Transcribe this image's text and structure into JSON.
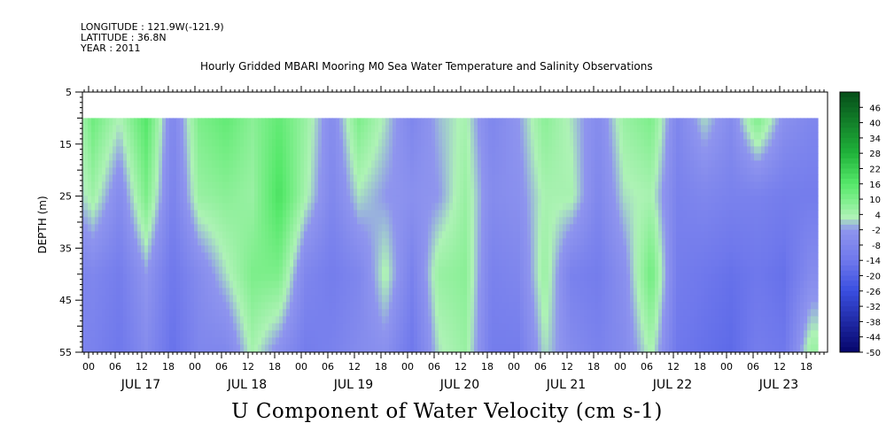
{
  "header": {
    "longitude": "LONGITUDE : 121.9W(-121.9)",
    "latitude": "LATITUDE : 36.8N",
    "year": "YEAR : 2011"
  },
  "chart_data": {
    "type": "heatmap",
    "title": "Hourly Gridded MBARI Mooring M0 Sea Water Temperature and Salinity Observations",
    "xlabel": "U Component of Water Velocity (cm s-1)",
    "ylabel": "DEPTH (m)",
    "ylim": [
      55,
      5
    ],
    "y_ticks": [
      5,
      15,
      25,
      35,
      45,
      55
    ],
    "data_depth_range": [
      10,
      55
    ],
    "x_hour_ticks": [
      "00",
      "06",
      "12",
      "18",
      "00",
      "06",
      "12",
      "18",
      "00",
      "06",
      "12",
      "18",
      "00",
      "06",
      "12",
      "18",
      "00",
      "06",
      "12",
      "18",
      "00",
      "06",
      "12",
      "18",
      "00",
      "06",
      "12",
      "18"
    ],
    "x_day_labels": [
      "JUL 17",
      "JUL 18",
      "JUL 19",
      "JUL 20",
      "JUL 21",
      "JUL 22",
      "JUL 23"
    ],
    "colorbar_labels": [
      "46",
      "40",
      "34",
      "28",
      "22",
      "16",
      "10",
      "4",
      "-2",
      "-8",
      "-14",
      "-20",
      "-26",
      "-32",
      "-38",
      "-44",
      "-50"
    ],
    "colorbar_range": [
      -50,
      52
    ],
    "colors": {
      "strong_negative": "#05056a",
      "negative": "#8f95ee",
      "near_zero": "#aef2b6",
      "positive": "#55e86a",
      "strong_positive": "#064e19"
    },
    "u_samples": {
      "x_days_since_jul17": [
        -0.208,
        0.042,
        0.292,
        0.542,
        0.792,
        1.042,
        1.292,
        1.542,
        1.792,
        2.042,
        2.292,
        2.542,
        2.792,
        3.042,
        3.292,
        3.542,
        3.792,
        4.042,
        4.292,
        4.542,
        4.792,
        5.042,
        5.292,
        5.542,
        5.792,
        6.042,
        6.292,
        6.542,
        6.792
      ],
      "depths": [
        10,
        25,
        40,
        55
      ],
      "values": [
        [
          -6,
          -4,
          -10,
          -8
        ],
        [
          12,
          5,
          -8,
          -10
        ],
        [
          3,
          -6,
          -12,
          -14
        ],
        [
          16,
          10,
          -2,
          -6
        ],
        [
          -8,
          -10,
          -14,
          -16
        ],
        [
          10,
          6,
          -6,
          -8
        ],
        [
          14,
          8,
          2,
          -8
        ],
        [
          8,
          6,
          10,
          4
        ],
        [
          14,
          18,
          10,
          -4
        ],
        [
          6,
          4,
          -8,
          -12
        ],
        [
          -6,
          -8,
          -12,
          -10
        ],
        [
          10,
          2,
          -8,
          -6
        ],
        [
          2,
          -2,
          4,
          -4
        ],
        [
          -8,
          -4,
          -10,
          -14
        ],
        [
          0,
          -2,
          6,
          2
        ],
        [
          4,
          6,
          8,
          6
        ],
        [
          -8,
          -6,
          -10,
          -12
        ],
        [
          -2,
          -4,
          -8,
          -12
        ],
        [
          8,
          4,
          6,
          2
        ],
        [
          2,
          4,
          -10,
          -6
        ],
        [
          -6,
          -8,
          -12,
          -10
        ],
        [
          6,
          2,
          -4,
          -6
        ],
        [
          10,
          4,
          12,
          4
        ],
        [
          -8,
          -10,
          -12,
          -14
        ],
        [
          2,
          -8,
          -14,
          -16
        ],
        [
          -6,
          -10,
          -16,
          -18
        ],
        [
          10,
          -10,
          -14,
          -12
        ],
        [
          -4,
          -12,
          -16,
          -14
        ],
        [
          -8,
          -12,
          -6,
          6
        ]
      ]
    }
  }
}
